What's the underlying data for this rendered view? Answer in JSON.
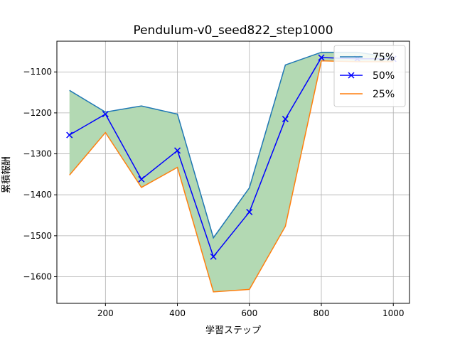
{
  "chart_data": {
    "type": "line",
    "title": "Pendulum-v0_seed822_step1000",
    "xlabel": "学習ステップ",
    "ylabel": "累積報酬",
    "x": [
      100,
      200,
      300,
      400,
      500,
      600,
      700,
      800,
      900,
      1000
    ],
    "xlim": [
      65,
      1045
    ],
    "ylim": [
      -1665,
      -1025
    ],
    "xticks": [
      200,
      400,
      600,
      800,
      1000
    ],
    "xtick_labels": [
      "200",
      "400",
      "600",
      "800",
      "1000"
    ],
    "yticks": [
      -1600,
      -1500,
      -1400,
      -1300,
      -1200,
      -1100
    ],
    "ytick_labels": [
      "−1600",
      "−1500",
      "−1400",
      "−1300",
      "−1200",
      "−1100"
    ],
    "grid": true,
    "legend_position": "top-right",
    "fill_between": {
      "upper": "75%",
      "lower": "25%",
      "color": "#b3d9b3"
    },
    "series": [
      {
        "name": "75%",
        "color": "#1f77b4",
        "marker": "none",
        "values": [
          -1145,
          -1198,
          -1183,
          -1203,
          -1505,
          -1383,
          -1083,
          -1052,
          -1052,
          -1065
        ]
      },
      {
        "name": "50%",
        "color": "#0000ff",
        "marker": "x",
        "values": [
          -1254,
          -1203,
          -1362,
          -1292,
          -1551,
          -1442,
          -1215,
          -1065,
          -1068,
          -1068
        ]
      },
      {
        "name": "25%",
        "color": "#ff7f0e",
        "marker": "none",
        "values": [
          -1352,
          -1248,
          -1382,
          -1333,
          -1637,
          -1631,
          -1477,
          -1073,
          -1075,
          -1075
        ]
      }
    ]
  }
}
